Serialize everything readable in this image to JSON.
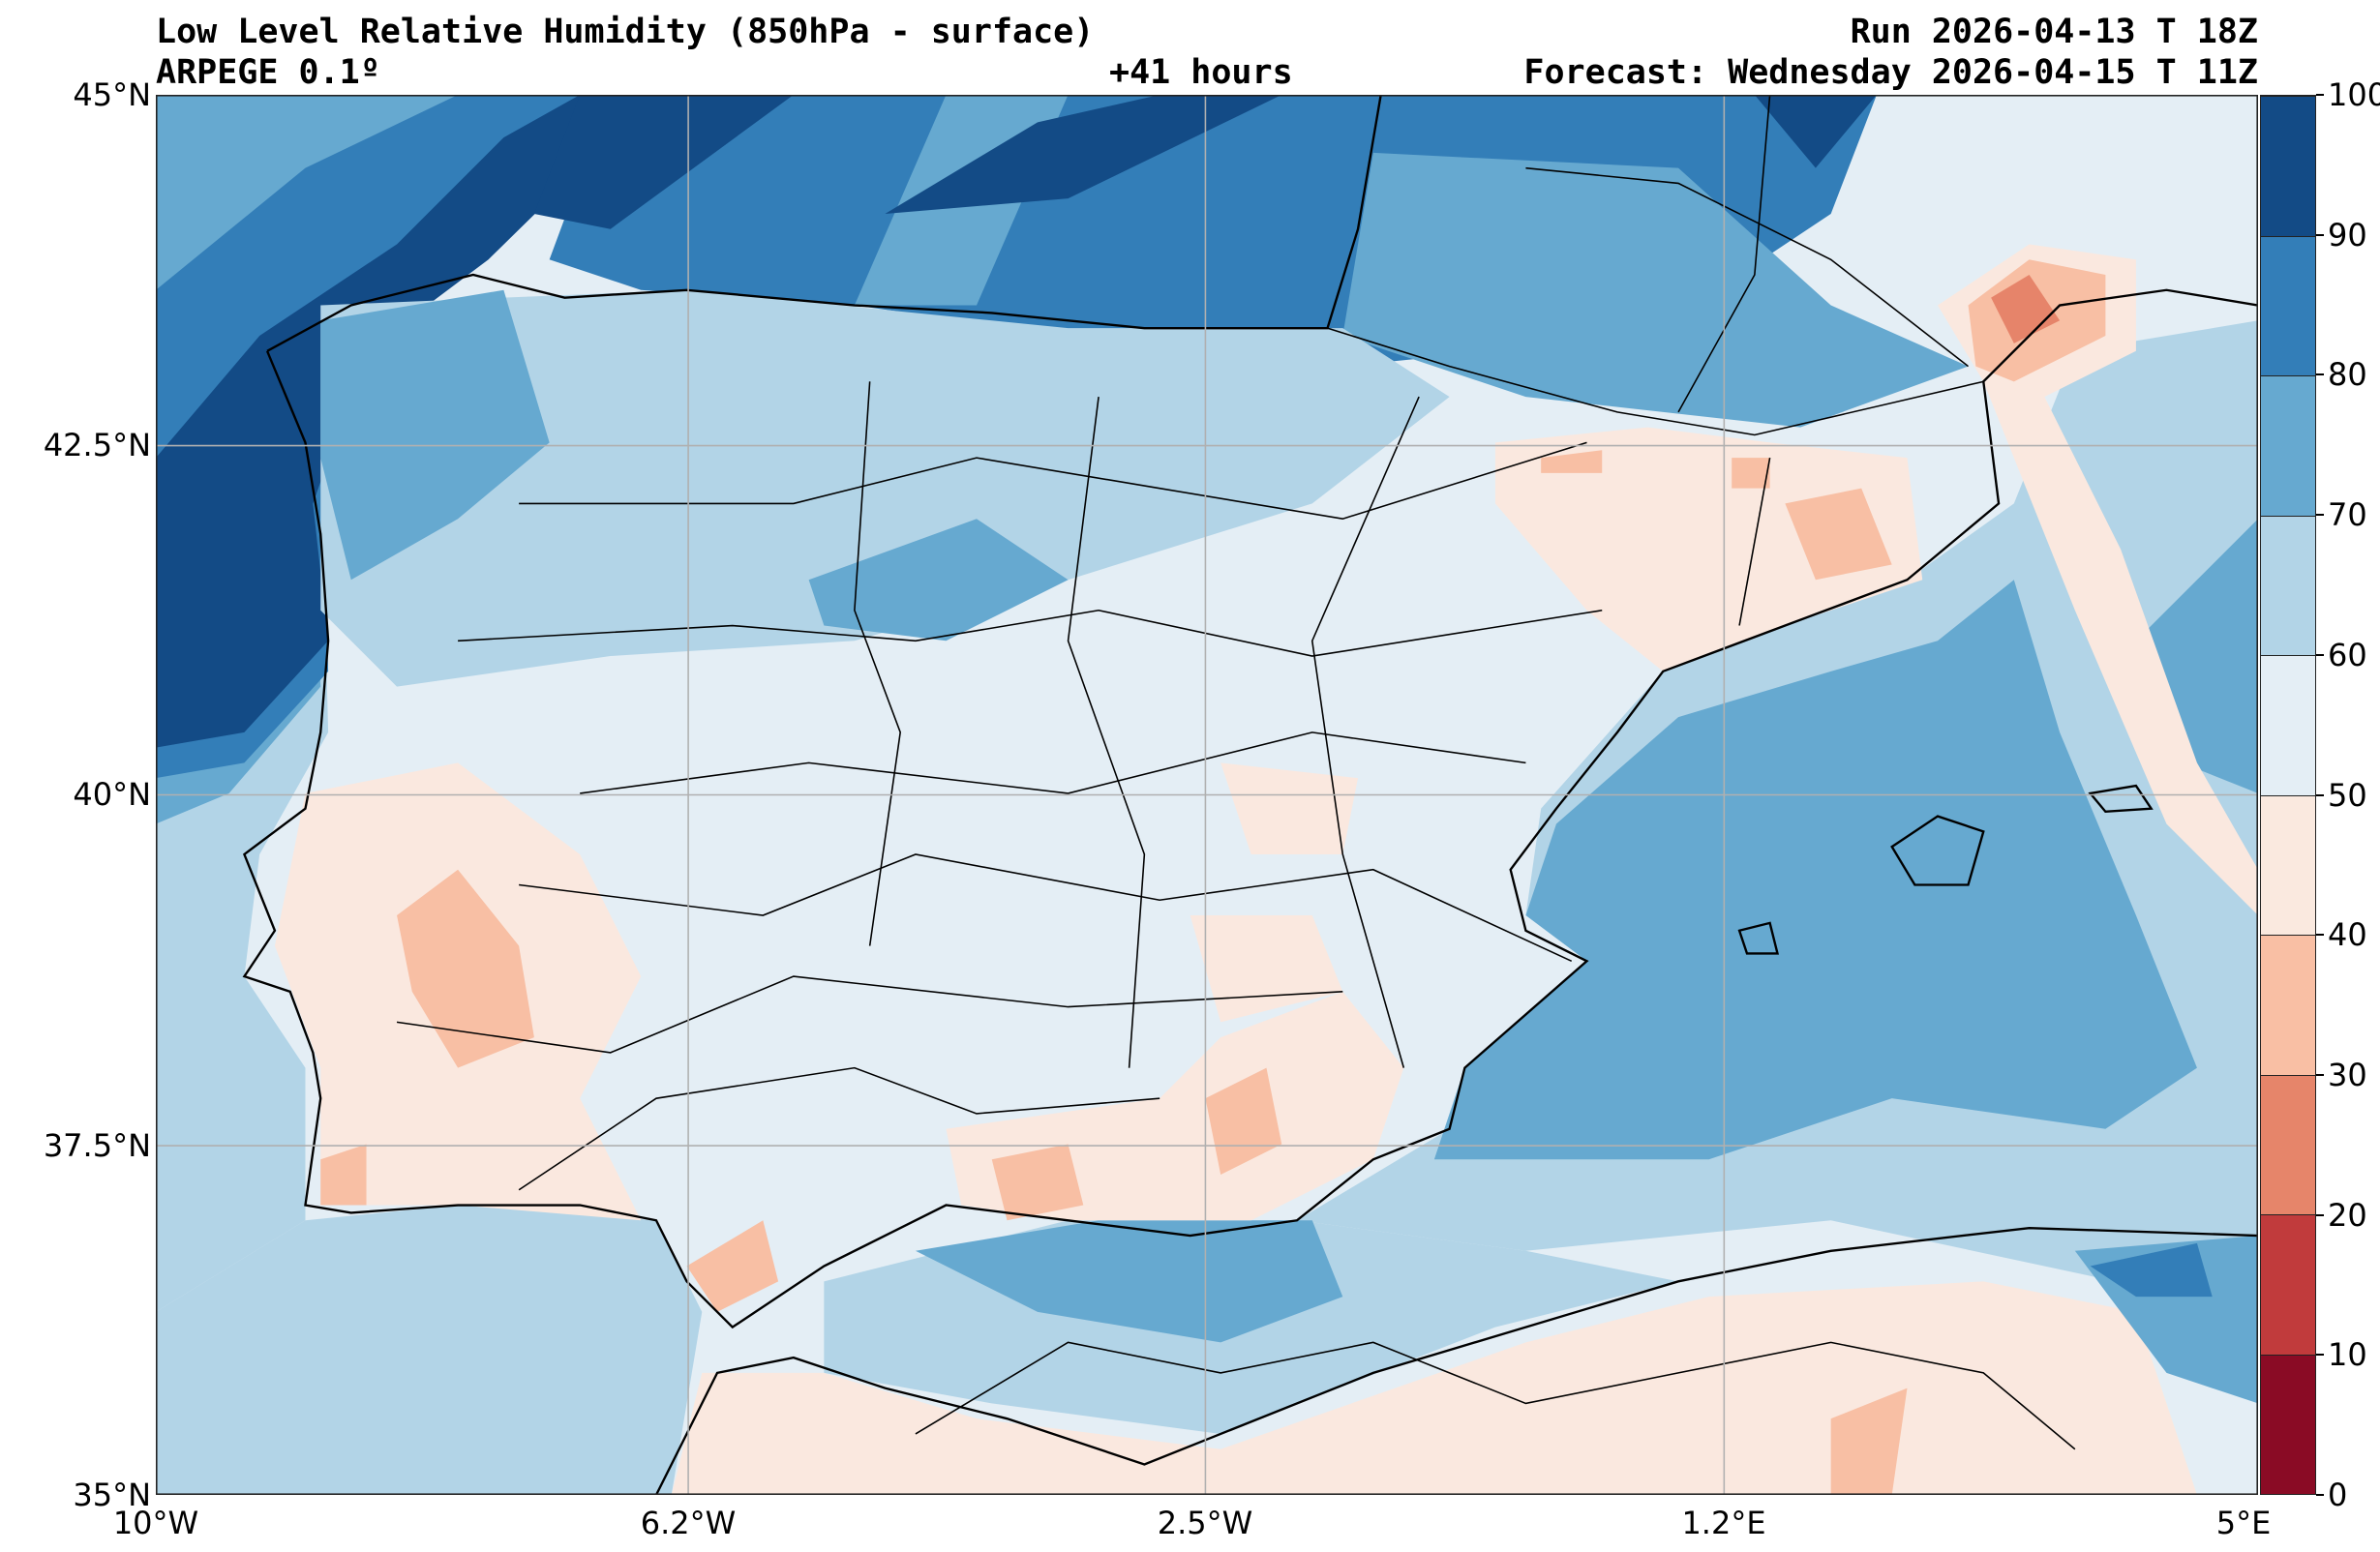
{
  "header": {
    "title": "Low Level Relative Humidity (850hPa - surface)",
    "model": "ARPEGE 0.1º",
    "lead_time": "+41 hours",
    "run": "Run 2026-04-13 T 18Z",
    "forecast": "Forecast: Wednesday 2026-04-15 T 11Z"
  },
  "map": {
    "extent": {
      "lon": [
        -10,
        5
      ],
      "lat": [
        35,
        45
      ]
    },
    "lat_labels": [
      "45°N",
      "42.5°N",
      "40°N",
      "37.5°N",
      "35°N"
    ],
    "lon_labels": [
      "10°W",
      "6.2°W",
      "2.5°W",
      "1.2°E",
      "5°E"
    ]
  },
  "colorbar": {
    "labels": [
      "0",
      "10",
      "20",
      "30",
      "40",
      "50",
      "60",
      "70",
      "80",
      "90",
      "100"
    ],
    "colors": [
      "#8a0b25",
      "#c13b3c",
      "#e6856a",
      "#f9bfa4",
      "#fae9df",
      "#e4eef5",
      "#b2d4e7",
      "#66a9d0",
      "#337eb8",
      "#134b86"
    ]
  }
}
